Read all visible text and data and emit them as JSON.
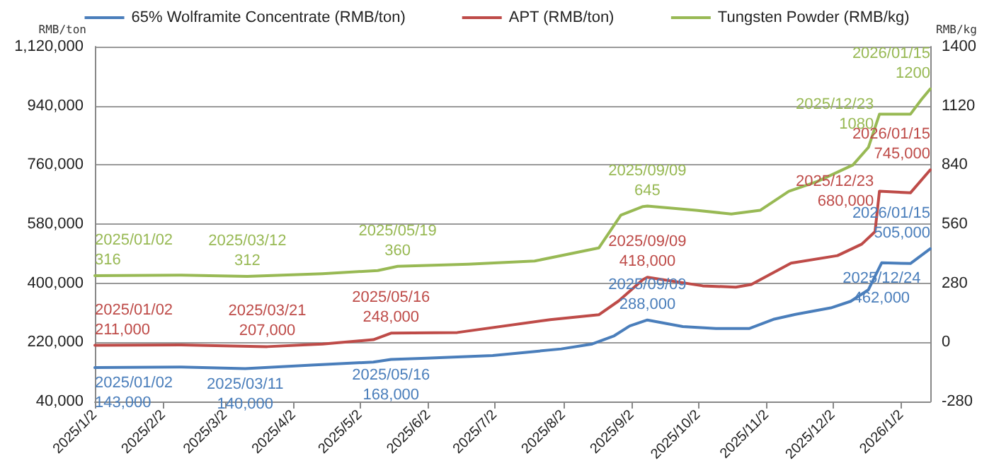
{
  "chart_data": {
    "type": "line",
    "ylabel": "RMB/ton",
    "y2label": "RMB/kg",
    "xlim": [
      "2025-01-02",
      "2026-01-15"
    ],
    "xticks": [
      {
        "value": "2025-01-02",
        "label": "2025/1/2"
      },
      {
        "value": "2025-02-02",
        "label": "2025/2/2"
      },
      {
        "value": "2025-03-02",
        "label": "2025/3/2"
      },
      {
        "value": "2025-04-02",
        "label": "2025/4/2"
      },
      {
        "value": "2025-05-02",
        "label": "2025/5/2"
      },
      {
        "value": "2025-06-02",
        "label": "2025/6/2"
      },
      {
        "value": "2025-07-02",
        "label": "2025/7/2"
      },
      {
        "value": "2025-08-02",
        "label": "2025/8/2"
      },
      {
        "value": "2025-09-02",
        "label": "2025/9/2"
      },
      {
        "value": "2025-10-02",
        "label": "2025/10/2"
      },
      {
        "value": "2025-11-02",
        "label": "2025/11/2"
      },
      {
        "value": "2025-12-02",
        "label": "2025/12/2"
      },
      {
        "value": "2026-01-02",
        "label": "2026/1/2"
      }
    ],
    "ylim": [
      40000,
      1120000
    ],
    "yticks": [
      {
        "value": 40000,
        "label": "40,000"
      },
      {
        "value": 220000,
        "label": "220,000"
      },
      {
        "value": 400000,
        "label": "400,000"
      },
      {
        "value": 580000,
        "label": "580,000"
      },
      {
        "value": 760000,
        "label": "760,000"
      },
      {
        "value": 940000,
        "label": "940,000"
      },
      {
        "value": 1120000,
        "label": "1,120,000"
      }
    ],
    "y2lim": [
      -280,
      1400
    ],
    "y2ticks": [
      -280,
      0,
      280,
      560,
      840,
      1120,
      1400
    ],
    "grid": "y",
    "legend": "top",
    "marker": "none",
    "line_style": "solid",
    "series": [
      {
        "name": "65% Wolframite Concentrate (RMB/ton)",
        "color": "#4a7ebb",
        "x": [
          "2025-01-02",
          "2025-02-10",
          "2025-03-11",
          "2025-04-10",
          "2025-05-08",
          "2025-05-16",
          "2025-06-01",
          "2025-07-01",
          "2025-08-01",
          "2025-08-15",
          "2025-08-25",
          "2025-09-01",
          "2025-09-09",
          "2025-09-25",
          "2025-10-10",
          "2025-10-25",
          "2025-11-05",
          "2025-11-15",
          "2025-12-01",
          "2025-12-10",
          "2025-12-18",
          "2025-12-24",
          "2026-01-06",
          "2026-01-15"
        ],
        "values": [
          143000,
          145000,
          140000,
          151000,
          160000,
          168000,
          172000,
          180000,
          200000,
          215000,
          240000,
          270000,
          288000,
          268000,
          262000,
          262000,
          290000,
          305000,
          325000,
          345000,
          380000,
          462000,
          460000,
          505000
        ],
        "value_labels": [
          "2025/01/02\n143,000",
          null,
          "2025/03/11\n140,000",
          null,
          null,
          "2025/05/16\n168,000",
          null,
          null,
          null,
          null,
          null,
          null,
          "2025/09/09\n288,000",
          null,
          null,
          null,
          null,
          null,
          null,
          null,
          null,
          "2025/12/24\n462,000",
          null,
          "2026/01/15\n505,000"
        ]
      },
      {
        "name": "APT (RMB/ton)",
        "color": "#be4b48",
        "x": [
          "2025-01-02",
          "2025-02-10",
          "2025-03-21",
          "2025-04-15",
          "2025-05-08",
          "2025-05-16",
          "2025-06-15",
          "2025-07-27",
          "2025-08-18",
          "2025-08-27",
          "2025-09-07",
          "2025-09-09",
          "2025-10-04",
          "2025-10-19",
          "2025-10-26",
          "2025-11-13",
          "2025-12-04",
          "2025-12-15",
          "2025-12-21",
          "2025-12-23",
          "2026-01-06",
          "2026-01-15"
        ],
        "values": [
          211000,
          212000,
          207000,
          215000,
          228000,
          248000,
          250000,
          289000,
          304000,
          346000,
          411000,
          418000,
          392000,
          388000,
          396000,
          461000,
          484000,
          519000,
          557000,
          680000,
          675000,
          745000
        ],
        "value_labels": [
          "2025/01/02\n211,000",
          null,
          "2025/03/21\n207,000",
          null,
          null,
          "2025/05/16\n248,000",
          null,
          null,
          null,
          null,
          null,
          "2025/09/09\n418,000",
          null,
          null,
          null,
          null,
          null,
          null,
          null,
          "2025/12/23\n680,000",
          null,
          "2026/01/15\n745,000"
        ]
      },
      {
        "name": "Tungsten Powder (RMB/kg)",
        "color": "#98b954",
        "axis": "y2",
        "x": [
          "2025-01-02",
          "2025-02-10",
          "2025-03-12",
          "2025-04-15",
          "2025-05-10",
          "2025-05-19",
          "2025-06-20",
          "2025-07-20",
          "2025-08-18",
          "2025-08-28",
          "2025-09-07",
          "2025-09-09",
          "2025-10-01",
          "2025-10-17",
          "2025-10-30",
          "2025-11-12",
          "2025-11-25",
          "2025-12-11",
          "2025-12-18",
          "2025-12-23",
          "2026-01-06",
          "2026-01-11",
          "2026-01-15"
        ],
        "values": [
          316,
          318,
          312,
          325,
          340,
          360,
          370,
          385,
          447,
          602,
          643,
          645,
          625,
          608,
          625,
          715,
          762,
          840,
          923,
          1080,
          1080,
          1150,
          1200
        ],
        "value_labels": [
          "2025/01/02\n316",
          null,
          "2025/03/12\n312",
          null,
          null,
          "2025/05/19\n360",
          null,
          null,
          null,
          null,
          null,
          "2025/09/09\n645",
          null,
          null,
          null,
          null,
          null,
          null,
          null,
          "2025/12/23\n1080",
          null,
          null,
          "2026/01/15\n1200"
        ]
      }
    ]
  }
}
